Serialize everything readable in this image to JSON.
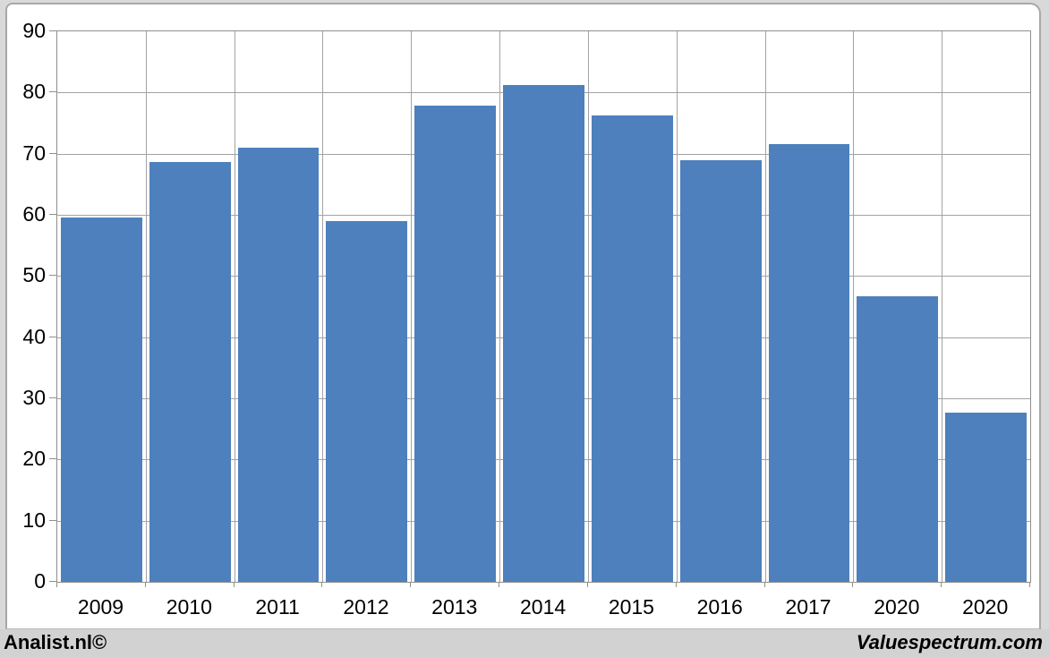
{
  "chart_data": {
    "type": "bar",
    "categories": [
      "2009",
      "2010",
      "2011",
      "2012",
      "2013",
      "2014",
      "2015",
      "2016",
      "2017",
      "2020",
      "2020"
    ],
    "values": [
      59.5,
      68.7,
      71.0,
      59.0,
      77.8,
      81.2,
      76.2,
      68.9,
      71.5,
      46.7,
      27.6
    ],
    "title": "",
    "xlabel": "",
    "ylabel": "",
    "ylim": [
      0,
      90
    ],
    "ytick_step": 10,
    "yticks": [
      0,
      10,
      20,
      30,
      40,
      50,
      60,
      70,
      80,
      90
    ],
    "grid": "on",
    "legend": "none",
    "bar_color": "#4d80bc",
    "gridline_color": "#a3a3a3",
    "axis_color": "#8f8f8f"
  },
  "footer": {
    "left": "Analist.nl©",
    "right": "Valuespectrum.com"
  },
  "colors": {
    "page_background": "#d9d9d9",
    "panel_background": "#ffffff",
    "footer_background": "#d2d2d2",
    "text": "#000000"
  }
}
